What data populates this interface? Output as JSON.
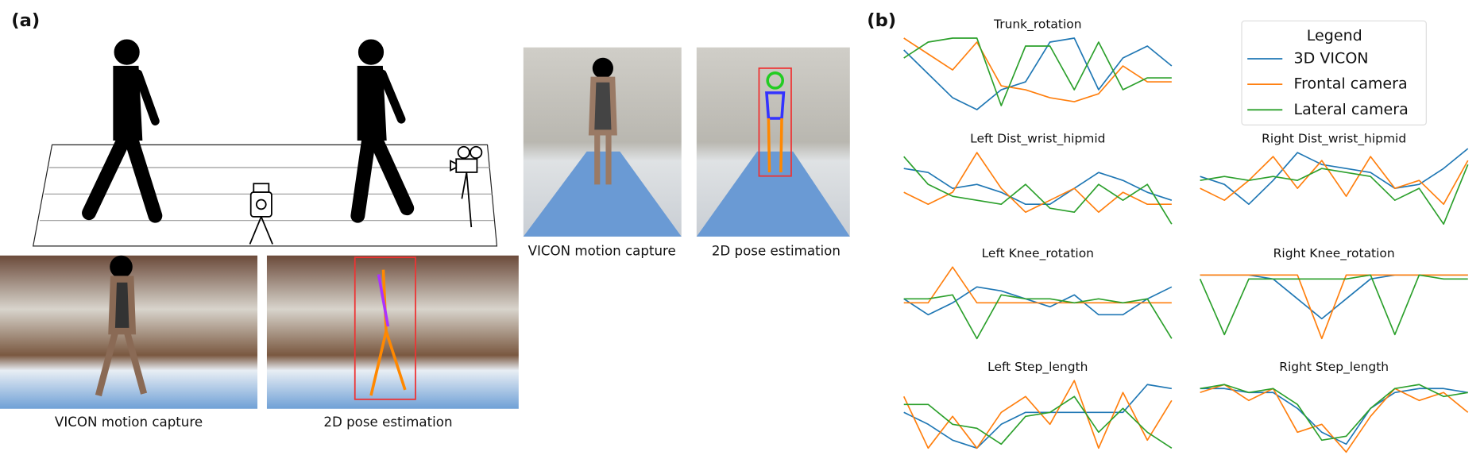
{
  "panel_a": {
    "label": "(a)",
    "captions": [
      "VICON motion capture",
      "2D pose estimation",
      "VICON motion capture",
      "2D pose estimation"
    ]
  },
  "panel_b": {
    "label": "(b)",
    "legend": {
      "title": "Legend",
      "series": [
        {
          "name": "3D VICON",
          "color": "#1f77b4"
        },
        {
          "name": "Frontal camera",
          "color": "#ff7f0e"
        },
        {
          "name": "Lateral camera",
          "color": "#2ca02c"
        }
      ]
    },
    "ylim": [
      0,
      1
    ],
    "plots": [
      {
        "title": "Trunk_rotation",
        "series": [
          {
            "values": [
              0.8,
              0.5,
              0.2,
              0.05,
              0.3,
              0.4,
              0.9,
              0.95,
              0.3,
              0.7,
              0.85,
              0.6
            ]
          },
          {
            "values": [
              0.95,
              0.75,
              0.55,
              0.9,
              0.35,
              0.3,
              0.2,
              0.15,
              0.25,
              0.6,
              0.4,
              0.4
            ]
          },
          {
            "values": [
              0.7,
              0.9,
              0.95,
              0.95,
              0.1,
              0.85,
              0.85,
              0.3,
              0.9,
              0.3,
              0.45,
              0.45
            ]
          }
        ]
      },
      {
        "title": "Left Dist_wrist_hipmid",
        "series": [
          {
            "values": [
              0.75,
              0.7,
              0.5,
              0.55,
              0.45,
              0.3,
              0.3,
              0.5,
              0.7,
              0.6,
              0.45,
              0.35
            ]
          },
          {
            "values": [
              0.45,
              0.3,
              0.45,
              0.95,
              0.5,
              0.2,
              0.35,
              0.5,
              0.2,
              0.45,
              0.3,
              0.3
            ]
          },
          {
            "values": [
              0.9,
              0.55,
              0.4,
              0.35,
              0.3,
              0.55,
              0.25,
              0.2,
              0.55,
              0.35,
              0.55,
              0.05
            ]
          }
        ]
      },
      {
        "title": "Right Dist_wrist_hipmid",
        "series": [
          {
            "values": [
              0.65,
              0.55,
              0.3,
              0.6,
              0.95,
              0.8,
              0.75,
              0.7,
              0.5,
              0.55,
              0.75,
              1.0
            ]
          },
          {
            "values": [
              0.5,
              0.35,
              0.6,
              0.9,
              0.5,
              0.85,
              0.4,
              0.9,
              0.5,
              0.6,
              0.3,
              0.85
            ]
          },
          {
            "values": [
              0.6,
              0.65,
              0.6,
              0.65,
              0.6,
              0.75,
              0.7,
              0.65,
              0.35,
              0.5,
              0.05,
              0.8
            ]
          }
        ]
      },
      {
        "title": "Left Knee_rotation",
        "series": [
          {
            "values": [
              0.55,
              0.35,
              0.5,
              0.7,
              0.65,
              0.55,
              0.45,
              0.6,
              0.35,
              0.35,
              0.55,
              0.7
            ]
          },
          {
            "values": [
              0.5,
              0.5,
              0.95,
              0.5,
              0.5,
              0.5,
              0.5,
              0.5,
              0.5,
              0.5,
              0.5,
              0.5
            ]
          },
          {
            "values": [
              0.55,
              0.55,
              0.6,
              0.05,
              0.6,
              0.55,
              0.55,
              0.5,
              0.55,
              0.5,
              0.55,
              0.05
            ]
          }
        ]
      },
      {
        "title": "Right Knee_rotation",
        "series": [
          {
            "values": [
              0.85,
              0.85,
              0.85,
              0.8,
              0.55,
              0.3,
              0.55,
              0.8,
              0.85,
              0.85,
              0.85,
              0.85
            ]
          },
          {
            "values": [
              0.85,
              0.85,
              0.85,
              0.85,
              0.85,
              0.05,
              0.85,
              0.85,
              0.85,
              0.85,
              0.85,
              0.85
            ]
          },
          {
            "values": [
              0.8,
              0.1,
              0.8,
              0.8,
              0.8,
              0.8,
              0.8,
              0.85,
              0.1,
              0.85,
              0.8,
              0.8
            ]
          }
        ]
      },
      {
        "title": "Left Step_length",
        "series": [
          {
            "values": [
              0.55,
              0.4,
              0.2,
              0.1,
              0.4,
              0.55,
              0.55,
              0.55,
              0.55,
              0.55,
              0.9,
              0.85
            ]
          },
          {
            "values": [
              0.75,
              0.1,
              0.5,
              0.1,
              0.55,
              0.75,
              0.4,
              0.95,
              0.1,
              0.8,
              0.2,
              0.7
            ]
          },
          {
            "values": [
              0.65,
              0.65,
              0.4,
              0.35,
              0.15,
              0.5,
              0.55,
              0.75,
              0.3,
              0.6,
              0.3,
              0.1
            ]
          }
        ]
      },
      {
        "title": "Right Step_length",
        "series": [
          {
            "values": [
              0.85,
              0.85,
              0.8,
              0.8,
              0.6,
              0.3,
              0.15,
              0.6,
              0.8,
              0.85,
              0.85,
              0.8
            ]
          },
          {
            "values": [
              0.8,
              0.9,
              0.7,
              0.85,
              0.3,
              0.4,
              0.05,
              0.5,
              0.85,
              0.7,
              0.8,
              0.55
            ]
          },
          {
            "values": [
              0.85,
              0.9,
              0.8,
              0.85,
              0.65,
              0.2,
              0.25,
              0.6,
              0.85,
              0.9,
              0.75,
              0.8
            ]
          }
        ]
      }
    ]
  }
}
